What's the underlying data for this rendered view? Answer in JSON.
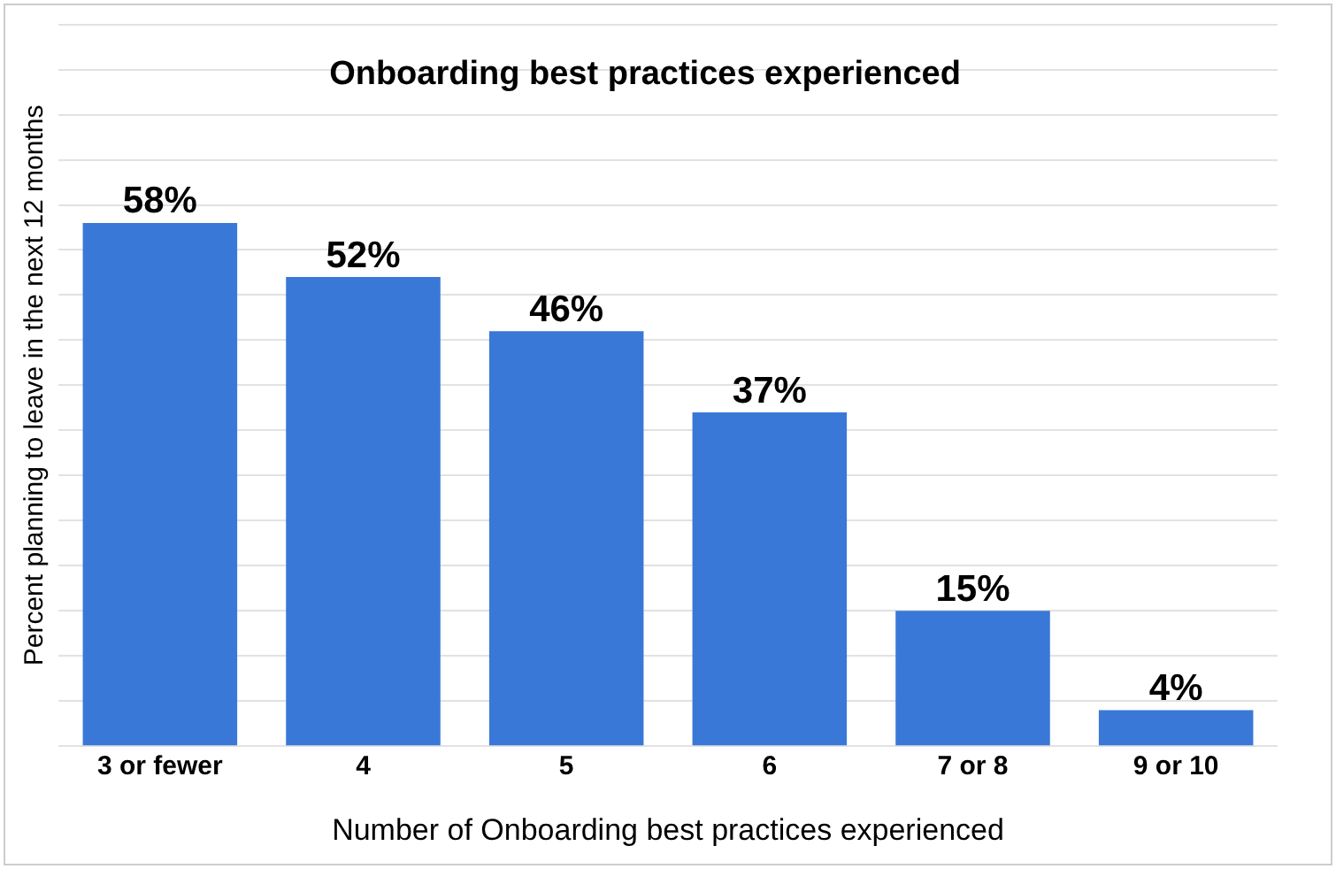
{
  "chart_data": {
    "type": "bar",
    "title": "Onboarding best practices experienced",
    "xlabel": "Number of Onboarding best practices experienced",
    "ylabel": "Percent planning to leave in the next 12 months",
    "categories": [
      "3 or fewer",
      "4",
      "5",
      "6",
      "7 or 8",
      "9 or 10"
    ],
    "values": [
      58,
      52,
      46,
      37,
      15,
      4
    ],
    "color": "#3a78d8",
    "ylim": [
      0,
      80
    ],
    "yticks": [
      {
        "value": 0,
        "label": null
      },
      {
        "value": 5,
        "label": null
      },
      {
        "value": 10,
        "label": null
      },
      {
        "value": 15,
        "label": null
      },
      {
        "value": 20,
        "label": null
      },
      {
        "value": 25,
        "label": null
      },
      {
        "value": 30,
        "label": null
      },
      {
        "value": 35,
        "label": null
      },
      {
        "value": 40,
        "label": null
      },
      {
        "value": 45,
        "label": null
      },
      {
        "value": 50,
        "label": null
      },
      {
        "value": 55,
        "label": null
      },
      {
        "value": 60,
        "label": null
      },
      {
        "value": 65,
        "label": null
      },
      {
        "value": 70,
        "label": null
      },
      {
        "value": 75,
        "label": null
      },
      {
        "value": 80,
        "label": null
      }
    ],
    "grid": "y",
    "tick_labels": "x",
    "data_labels": true,
    "value_labels": [
      "58%",
      "52%",
      "46%",
      "37%",
      "15%",
      "4%"
    ],
    "legend": false
  }
}
